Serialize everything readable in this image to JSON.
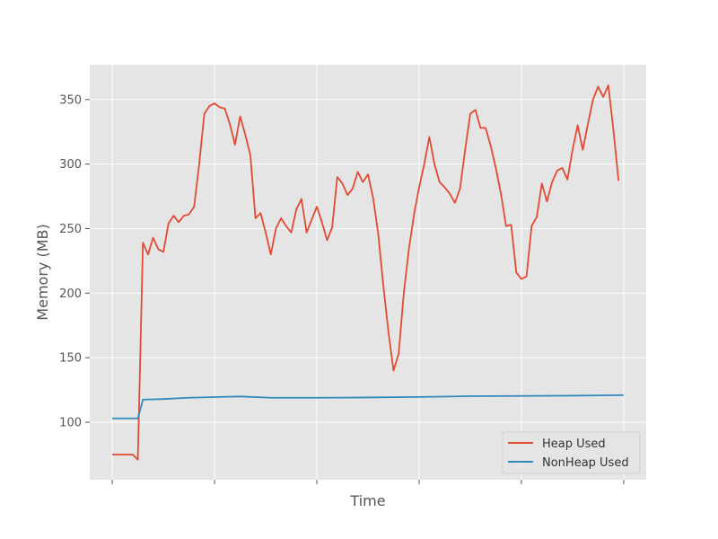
{
  "chart_data": {
    "type": "line",
    "title": "",
    "xlabel": "Time",
    "ylabel": "Memory (MB)",
    "ylim": [
      55.5,
      377.0
    ],
    "yticks": [
      100,
      150,
      200,
      250,
      300,
      350
    ],
    "ytick_labels": [
      "100",
      "150",
      "200",
      "250",
      "300",
      "350"
    ],
    "x_tick_labels": [],
    "xlim": [
      -4.4,
      104.4
    ],
    "grid": true,
    "style": "ggplot",
    "legend_position": "lower-right",
    "series": [
      {
        "name": "Heap Used",
        "color": "#E24A33",
        "x": [
          0,
          1,
          2,
          3,
          4,
          5,
          6,
          7,
          8,
          9,
          10,
          11,
          12,
          13,
          14,
          15,
          16,
          17,
          18,
          19,
          20,
          21,
          22,
          23,
          24,
          25,
          26,
          27,
          28,
          29,
          30,
          31,
          32,
          33,
          34,
          35,
          36,
          37,
          38,
          39,
          40,
          41,
          42,
          43,
          44,
          45,
          46,
          47,
          48,
          49,
          50,
          51,
          52,
          53,
          54,
          55,
          56,
          57,
          58,
          59,
          60,
          61,
          62,
          63,
          64,
          65,
          66,
          67,
          68,
          69,
          70,
          71,
          72,
          73,
          74,
          75,
          76,
          77,
          78,
          79,
          80,
          81,
          82,
          83,
          84,
          85,
          86,
          87,
          88,
          89,
          90,
          91,
          92,
          93,
          94,
          95,
          96,
          97,
          98,
          99
        ],
        "y": [
          75,
          75,
          75,
          75,
          75,
          71,
          239,
          230,
          243,
          234,
          232,
          254,
          260,
          255,
          260,
          261,
          267,
          300,
          339,
          345,
          347,
          344,
          343,
          331,
          315,
          337,
          323,
          307,
          258,
          262,
          247,
          230,
          250,
          258,
          252,
          247,
          265,
          273,
          247,
          257,
          267,
          255,
          241,
          251,
          290,
          285,
          276,
          281,
          294,
          286,
          292,
          274,
          246,
          206,
          170,
          140,
          153,
          200,
          234,
          261,
          282,
          300,
          321,
          300,
          286,
          282,
          277,
          270,
          281,
          311,
          339,
          342,
          328,
          328,
          314,
          297,
          277,
          252,
          253,
          216,
          211,
          213,
          252,
          259,
          285,
          271,
          286,
          295,
          297,
          288,
          311,
          330,
          311,
          331,
          350,
          360,
          352,
          361,
          326,
          287
        ]
      },
      {
        "name": "NonHeap Used",
        "color": "#348ABD",
        "x": [
          0,
          1,
          2,
          3,
          4,
          5,
          6,
          10,
          15,
          20,
          25,
          31,
          40,
          50,
          60,
          70,
          80,
          90,
          100
        ],
        "y": [
          103,
          103,
          103,
          103,
          103,
          103,
          117.5,
          118,
          119,
          119.5,
          120,
          119,
          119,
          119.2,
          119.6,
          120.2,
          120.4,
          120.6,
          121
        ]
      }
    ]
  }
}
